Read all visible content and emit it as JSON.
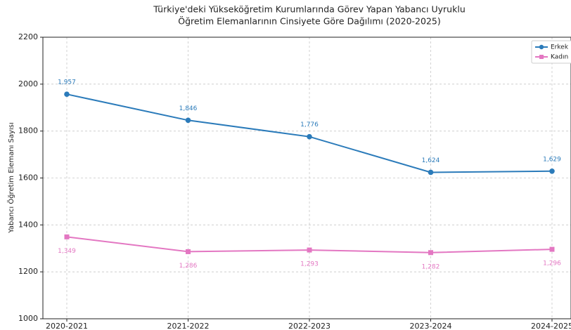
{
  "chart_data": {
    "type": "line",
    "title": [
      "Türkiye'deki Yükseköğretim Kurumlarında Görev Yapan Yabancı Uyruklu",
      "Öğretim Elemanlarının Cinsiyete Göre Dağılımı (2020-2025)"
    ],
    "y_label": "Yabancı Öğretim Elemanı Sayısı",
    "categories": [
      "2020-2021",
      "2021-2022",
      "2022-2023",
      "2023-2024",
      "2024-2025"
    ],
    "series": [
      {
        "name": "Erkek",
        "color": "#2b7bba",
        "marker": "circle",
        "values": [
          1957,
          1846,
          1776,
          1624,
          1629
        ],
        "value_labels": [
          "1,957",
          "1,846",
          "1,776",
          "1,624",
          "1,629"
        ]
      },
      {
        "name": "Kadın",
        "color": "#e377c2",
        "marker": "square",
        "values": [
          1349,
          1286,
          1293,
          1282,
          1296
        ],
        "value_labels": [
          "1,349",
          "1,286",
          "1,293",
          "1,282",
          "1,296"
        ]
      }
    ],
    "ylim": [
      1000,
      2200
    ],
    "yticks": [
      1000,
      1200,
      1400,
      1600,
      1800,
      2000,
      2200
    ],
    "grid": true,
    "legend": "upper right"
  }
}
